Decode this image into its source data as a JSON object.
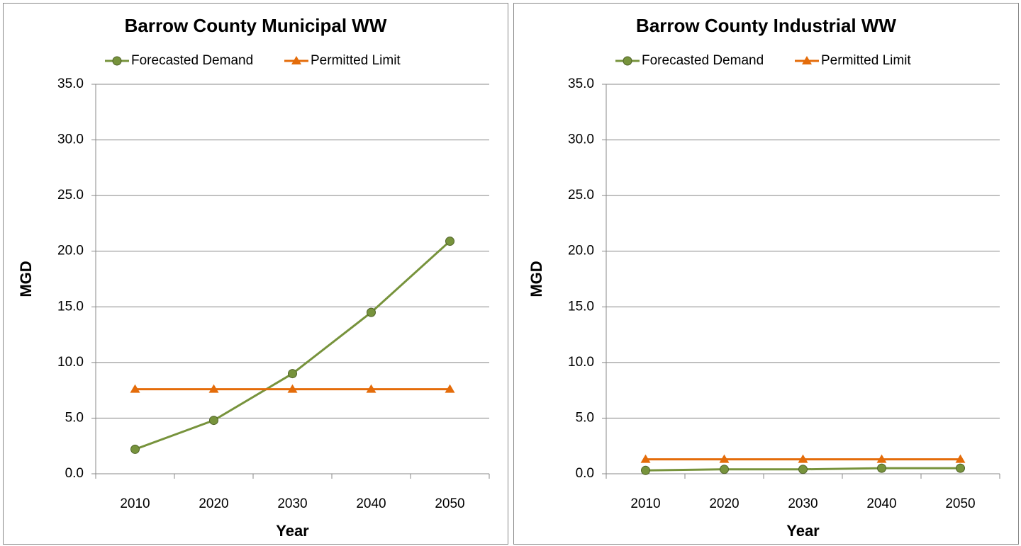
{
  "chart_data": [
    {
      "type": "line",
      "title": "Barrow County Municipal WW",
      "x_label": "Year",
      "y_label": "MGD",
      "categories": [
        "2010",
        "2020",
        "2030",
        "2040",
        "2050"
      ],
      "series": [
        {
          "name": "Forecasted Demand",
          "color": "#77933c",
          "marker": "circle",
          "values": [
            2.2,
            4.8,
            9.0,
            14.5,
            20.9
          ]
        },
        {
          "name": "Permitted Limit",
          "color": "#e46c0a",
          "marker": "triangle",
          "values": [
            7.6,
            7.6,
            7.6,
            7.6,
            7.6
          ]
        }
      ],
      "ylim": [
        0,
        35
      ],
      "yticks": [
        {
          "value": 0,
          "label": "0.0"
        },
        {
          "value": 5,
          "label": "5.0"
        },
        {
          "value": 10,
          "label": "10.0"
        },
        {
          "value": 15,
          "label": "15.0"
        },
        {
          "value": 20,
          "label": "20.0"
        },
        {
          "value": 25,
          "label": "25.0"
        },
        {
          "value": 30,
          "label": "30.0"
        },
        {
          "value": 35,
          "label": "35.0"
        }
      ],
      "grid": true
    },
    {
      "type": "line",
      "title": "Barrow County Industrial WW",
      "x_label": "Year",
      "y_label": "MGD",
      "categories": [
        "2010",
        "2020",
        "2030",
        "2040",
        "2050"
      ],
      "series": [
        {
          "name": "Forecasted Demand",
          "color": "#77933c",
          "marker": "circle",
          "values": [
            0.3,
            0.4,
            0.4,
            0.5,
            0.5
          ]
        },
        {
          "name": "Permitted Limit",
          "color": "#e46c0a",
          "marker": "triangle",
          "values": [
            1.3,
            1.3,
            1.3,
            1.3,
            1.3
          ]
        }
      ],
      "ylim": [
        0,
        35
      ],
      "yticks": [
        {
          "value": 0,
          "label": "0.0"
        },
        {
          "value": 5,
          "label": "5.0"
        },
        {
          "value": 10,
          "label": "10.0"
        },
        {
          "value": 15,
          "label": "15.0"
        },
        {
          "value": 20,
          "label": "20.0"
        },
        {
          "value": 25,
          "label": "25.0"
        },
        {
          "value": 30,
          "label": "30.0"
        },
        {
          "value": 35,
          "label": "35.0"
        }
      ],
      "grid": true
    }
  ]
}
